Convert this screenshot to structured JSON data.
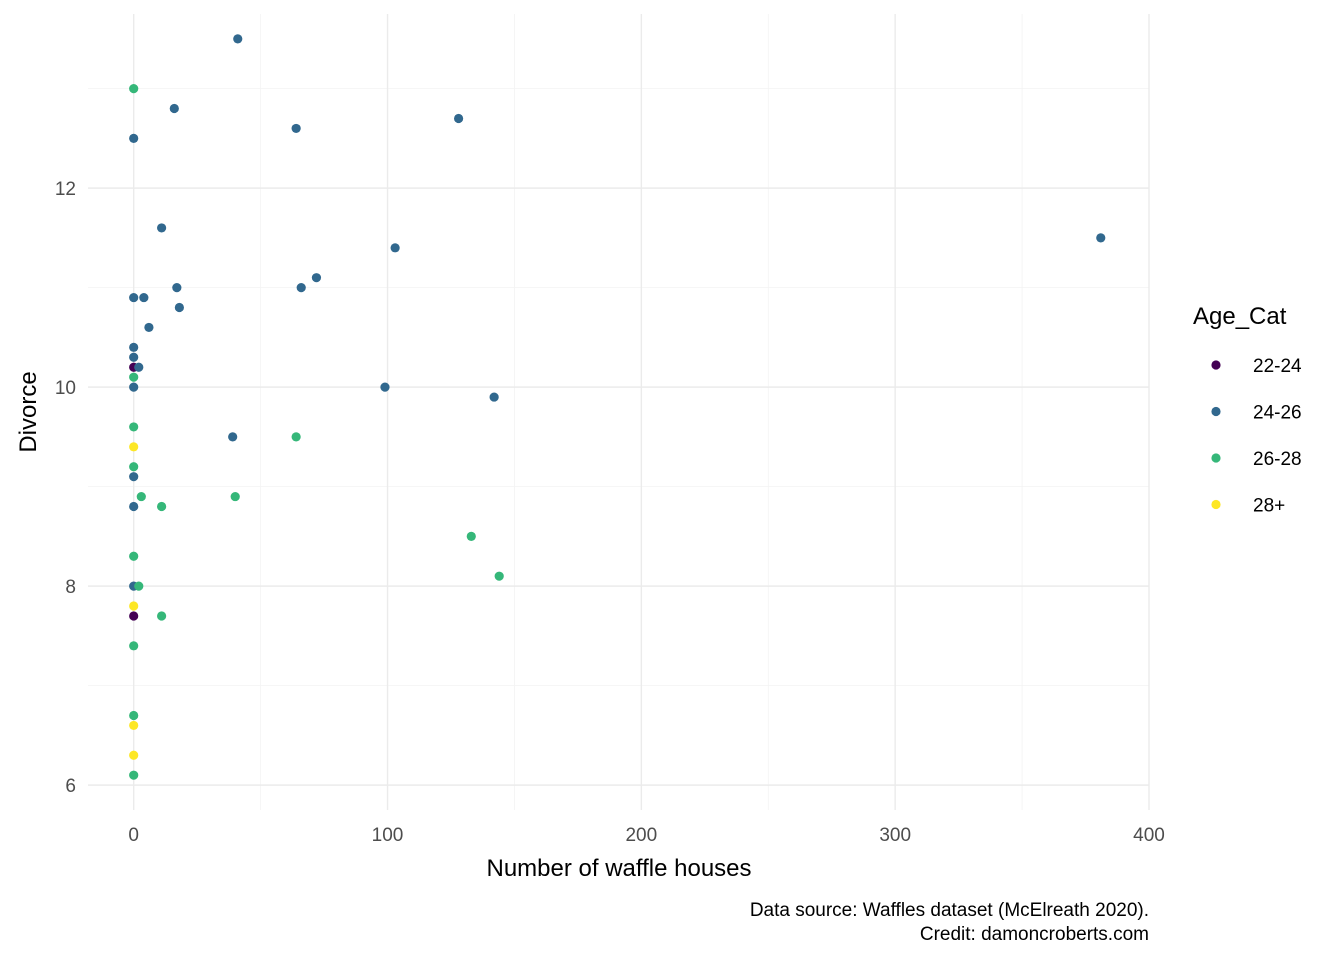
{
  "chart_data": {
    "type": "scatter",
    "title": "",
    "xlabel": "Number of waffle houses",
    "ylabel": "Divorce",
    "xlim": [
      -18,
      400
    ],
    "ylim": [
      5.75,
      13.75
    ],
    "x_ticks": [
      0,
      100,
      200,
      300,
      400
    ],
    "x_tick_labels": [
      "0",
      "100",
      "200",
      "300",
      "400"
    ],
    "y_ticks": [
      6,
      8,
      10,
      12
    ],
    "y_tick_labels": [
      "6",
      "8",
      "10",
      "12"
    ],
    "grid": true,
    "legend": {
      "title": "Age_Cat",
      "position": "right"
    },
    "caption": [
      "Data source: Waffles dataset (McElreath 2020).",
      "Credit: damoncroberts.com"
    ],
    "series": [
      {
        "name": "22-24",
        "color": "#440154",
        "points": [
          [
            0,
            10.2
          ],
          [
            0,
            7.7
          ]
        ]
      },
      {
        "name": "24-26",
        "color": "#31688e",
        "points": [
          [
            41,
            13.5
          ],
          [
            16,
            12.8
          ],
          [
            0,
            12.5
          ],
          [
            64,
            12.6
          ],
          [
            128,
            12.7
          ],
          [
            11,
            11.6
          ],
          [
            103,
            11.4
          ],
          [
            381,
            11.5
          ],
          [
            0,
            10.9
          ],
          [
            4,
            10.9
          ],
          [
            17,
            11.0
          ],
          [
            66,
            11.0
          ],
          [
            72,
            11.1
          ],
          [
            18,
            10.8
          ],
          [
            6,
            10.6
          ],
          [
            0,
            10.4
          ],
          [
            0,
            10.3
          ],
          [
            2,
            10.2
          ],
          [
            0,
            10.0
          ],
          [
            99,
            10.0
          ],
          [
            142,
            9.9
          ],
          [
            39,
            9.5
          ],
          [
            0,
            9.1
          ],
          [
            0,
            8.8
          ],
          [
            0,
            8.0
          ]
        ]
      },
      {
        "name": "26-28",
        "color": "#35b779",
        "points": [
          [
            0,
            13.0
          ],
          [
            0,
            10.1
          ],
          [
            0,
            9.6
          ],
          [
            64,
            9.5
          ],
          [
            0,
            9.2
          ],
          [
            3,
            8.9
          ],
          [
            40,
            8.9
          ],
          [
            11,
            8.8
          ],
          [
            133,
            8.5
          ],
          [
            0,
            8.3
          ],
          [
            144,
            8.1
          ],
          [
            2,
            8.0
          ],
          [
            11,
            7.7
          ],
          [
            0,
            7.4
          ],
          [
            0,
            6.7
          ],
          [
            0,
            6.1
          ]
        ]
      },
      {
        "name": "28+",
        "color": "#fde725",
        "points": [
          [
            0,
            9.4
          ],
          [
            0,
            7.8
          ],
          [
            0,
            6.6
          ],
          [
            0,
            6.3
          ]
        ]
      }
    ]
  }
}
